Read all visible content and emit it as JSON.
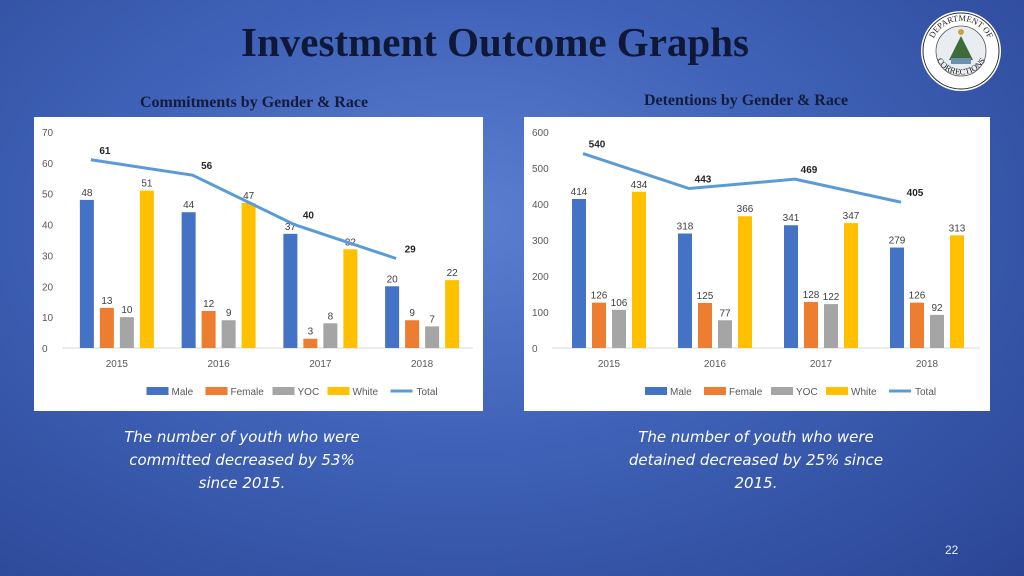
{
  "slide": {
    "title": "Investment Outcome Graphs",
    "page_number": "22",
    "logo": {
      "icon": "department-of-corrections-seal-icon",
      "text_top": "DEPARTMENT OF",
      "text_bottom": "CORRECTIONS"
    }
  },
  "left": {
    "subtitle": "Commitments by Gender & Race",
    "caption": "The number of youth who were committed decreased by 53% since 2015."
  },
  "right": {
    "subtitle": "Detentions by Gender & Race",
    "caption": "The number of youth who were detained decreased by 25% since 2015."
  },
  "colors": {
    "Male": "#4472c4",
    "Female": "#ed7d31",
    "YOC": "#a5a5a5",
    "White": "#ffc000",
    "Total": "#5b9bd5"
  },
  "chart_data": [
    {
      "type": "bar",
      "title": "",
      "categories": [
        "2015",
        "2016",
        "2017",
        "2018"
      ],
      "ylim": [
        0,
        70
      ],
      "yticks": [
        "0",
        "10",
        "20",
        "30",
        "40",
        "50",
        "60",
        "70"
      ],
      "series": [
        {
          "name": "Male",
          "values": [
            48,
            44,
            37,
            20
          ]
        },
        {
          "name": "Female",
          "values": [
            13,
            12,
            3,
            9
          ]
        },
        {
          "name": "YOC",
          "values": [
            10,
            9,
            8,
            7
          ]
        },
        {
          "name": "White",
          "values": [
            51,
            47,
            32,
            22
          ]
        }
      ],
      "line": {
        "name": "Total",
        "values": [
          61,
          56,
          40,
          29
        ]
      },
      "legend": "bottom",
      "grid": false
    },
    {
      "type": "bar",
      "title": "",
      "categories": [
        "2015",
        "2016",
        "2017",
        "2018"
      ],
      "ylim": [
        0,
        600
      ],
      "yticks": [
        "0",
        "100",
        "200",
        "300",
        "400",
        "500",
        "600"
      ],
      "series": [
        {
          "name": "Male",
          "values": [
            414,
            318,
            341,
            279
          ]
        },
        {
          "name": "Female",
          "values": [
            126,
            125,
            128,
            126
          ]
        },
        {
          "name": "YOC",
          "values": [
            106,
            77,
            122,
            92
          ]
        },
        {
          "name": "White",
          "values": [
            434,
            366,
            347,
            313
          ]
        }
      ],
      "line": {
        "name": "Total",
        "values": [
          540,
          443,
          469,
          405
        ]
      },
      "legend": "bottom",
      "grid": false
    }
  ]
}
